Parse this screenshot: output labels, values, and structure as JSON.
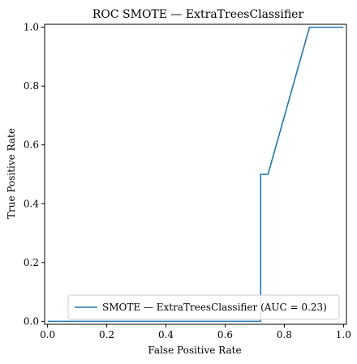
{
  "chart_data": {
    "type": "line",
    "title": "ROC SMOTE — ExtraTreesClassifier",
    "xlabel": "False Positive Rate",
    "ylabel": "True Positive Rate",
    "xlim": [
      -0.01,
      1.01
    ],
    "ylim": [
      -0.01,
      1.01
    ],
    "xticks": [
      "0.0",
      "0.2",
      "0.4",
      "0.6",
      "0.8",
      "1.0"
    ],
    "yticks": [
      "0.0",
      "0.2",
      "0.4",
      "0.6",
      "0.8",
      "1.0"
    ],
    "grid": false,
    "legend_position": "lower-right",
    "series": [
      {
        "name": "SMOTE — ExtraTreesClassifier (AUC = 0.23)",
        "color": "#1f77b4",
        "x": [
          0.0,
          0.72,
          0.72,
          0.72,
          0.745,
          0.885,
          1.0
        ],
        "y": [
          0.0,
          0.0,
          0.5,
          0.5,
          0.5,
          1.0,
          1.0
        ]
      }
    ]
  }
}
